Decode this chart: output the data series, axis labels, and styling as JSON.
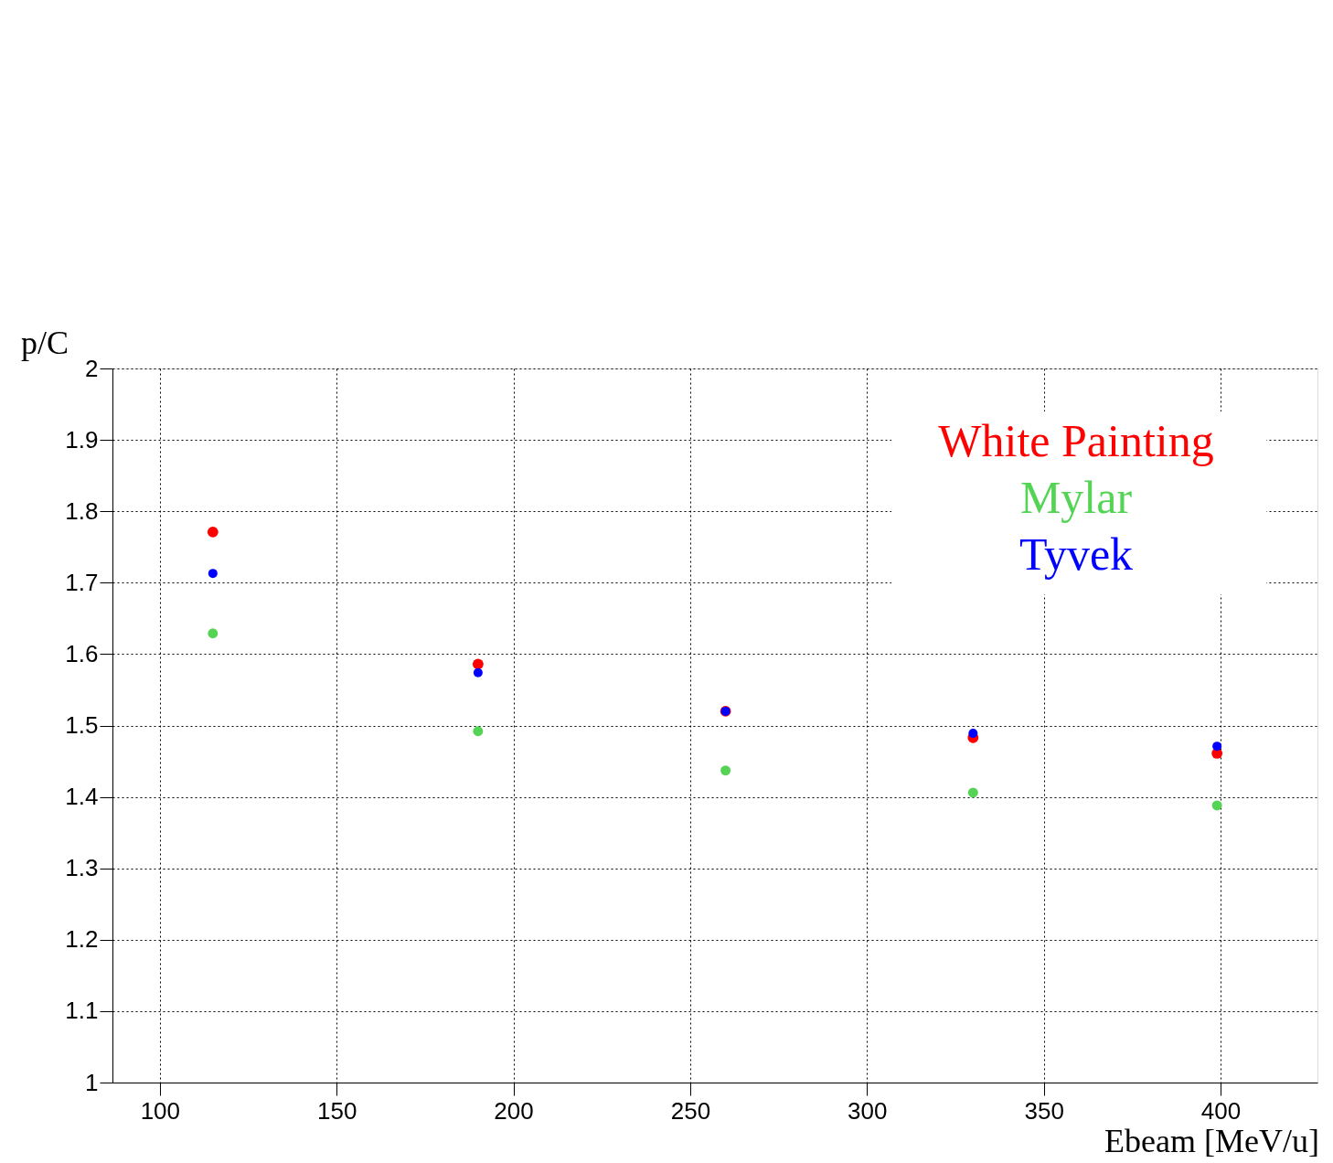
{
  "chart_data": {
    "type": "scatter",
    "xlabel": "Ebeam [MeV/u]",
    "ylabel": "p/C",
    "x": [
      115,
      190,
      260,
      330,
      399
    ],
    "series": [
      {
        "name": "White Painting",
        "color": "#ff0000",
        "values": [
          1.771,
          1.586,
          1.52,
          1.483,
          1.461
        ]
      },
      {
        "name": "Mylar",
        "color": "#55d355",
        "values": [
          1.629,
          1.492,
          1.437,
          1.406,
          1.388
        ]
      },
      {
        "name": "Tyvek",
        "color": "#0000ff",
        "values": [
          1.713,
          1.574,
          1.52,
          1.489,
          1.471
        ]
      }
    ],
    "xlim": [
      86.6,
      427.4
    ],
    "ylim": [
      1,
      2
    ],
    "xticks": [
      100,
      150,
      200,
      250,
      300,
      350,
      400
    ],
    "yticks": [
      1,
      1.1,
      1.2,
      1.3,
      1.4,
      1.5,
      1.6,
      1.7,
      1.8,
      1.9,
      2
    ],
    "grid": true,
    "legend": "top right",
    "marker": "circle"
  }
}
